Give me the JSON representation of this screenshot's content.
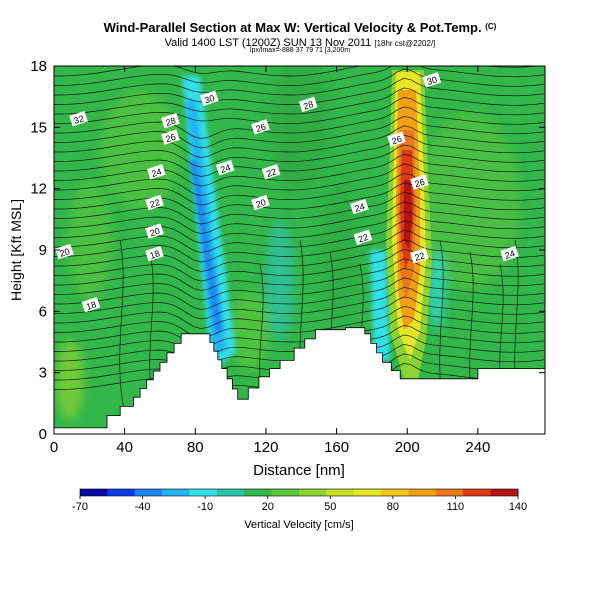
{
  "chart_data": {
    "type": "heatmap",
    "title": "Wind-Parallel Section at Max W: Vertical Velocity & Pot.Temp.",
    "title_mark": "(C)",
    "subtitle_main": "Valid 1400 LST (1200Z) SUN 13 Nov 2011",
    "subtitle_tag": "[18hr cst@2202/]",
    "info_line": "lpx/lmax=-888 37 79 71 [3,200m",
    "xlabel": "Distance [nm]",
    "ylabel": "Height [Kft MSL]",
    "xlim": [
      0,
      278
    ],
    "ylim": [
      0,
      18
    ],
    "x_ticks": [
      "0",
      "40",
      "80",
      "120",
      "160",
      "200",
      "240"
    ],
    "y_ticks": [
      "0",
      "3",
      "6",
      "9",
      "12",
      "15",
      "18"
    ],
    "colorbar": {
      "label": "Vertical Velocity [cm/s]",
      "range": [
        -70,
        140
      ],
      "tick_labels": [
        "-70",
        "-40",
        "-10",
        "20",
        "50",
        "80",
        "110",
        "140"
      ],
      "colors": [
        "#0a0aa0",
        "#0a3ce6",
        "#1e82f0",
        "#22b4f0",
        "#33e0e8",
        "#2fc2a6",
        "#33b64a",
        "#5cc83c",
        "#8cd232",
        "#c8dc28",
        "#e6e628",
        "#f2c81c",
        "#f0a014",
        "#e6781e",
        "#dc3c14",
        "#b41414"
      ]
    },
    "background_w_cm_s": 20,
    "features": [
      {
        "name": "downdraft band",
        "w_cm_s": -40,
        "x_top": 82,
        "x_bottom": 96
      },
      {
        "name": "updraft core",
        "w_cm_s": 140,
        "x": 201,
        "height_kft": 11
      }
    ],
    "terrain_heights_kft": [
      {
        "x": 0,
        "h": 0.3
      },
      {
        "x": 20,
        "h": 0.3
      },
      {
        "x": 30,
        "h": 0.9
      },
      {
        "x": 45,
        "h": 1.8
      },
      {
        "x": 60,
        "h": 3.5
      },
      {
        "x": 72,
        "h": 4.9
      },
      {
        "x": 86,
        "h": 4.9
      },
      {
        "x": 95,
        "h": 3.2
      },
      {
        "x": 104,
        "h": 1.7
      },
      {
        "x": 116,
        "h": 2.8
      },
      {
        "x": 128,
        "h": 3.6
      },
      {
        "x": 136,
        "h": 4.2
      },
      {
        "x": 148,
        "h": 5.1
      },
      {
        "x": 165,
        "h": 5.2
      },
      {
        "x": 176,
        "h": 4.9
      },
      {
        "x": 186,
        "h": 3.5
      },
      {
        "x": 196,
        "h": 2.7
      },
      {
        "x": 215,
        "h": 2.7
      },
      {
        "x": 240,
        "h": 3.2
      },
      {
        "x": 278,
        "h": 3.2
      }
    ],
    "contour_labels": [
      {
        "text": "32",
        "x": 14,
        "y": 15.4
      },
      {
        "text": "28",
        "x": 66,
        "y": 15.3
      },
      {
        "text": "26",
        "x": 66,
        "y": 14.5
      },
      {
        "text": "30",
        "x": 88,
        "y": 16.4
      },
      {
        "text": "28",
        "x": 144,
        "y": 16.1
      },
      {
        "text": "30",
        "x": 214,
        "y": 17.3
      },
      {
        "text": "26",
        "x": 117,
        "y": 15.0
      },
      {
        "text": "26",
        "x": 194,
        "y": 14.4
      },
      {
        "text": "24",
        "x": 58,
        "y": 12.8
      },
      {
        "text": "24",
        "x": 97,
        "y": 13.0
      },
      {
        "text": "22",
        "x": 123,
        "y": 12.8
      },
      {
        "text": "26",
        "x": 207,
        "y": 12.3
      },
      {
        "text": "22",
        "x": 57,
        "y": 11.3
      },
      {
        "text": "20",
        "x": 117,
        "y": 11.3
      },
      {
        "text": "24",
        "x": 173,
        "y": 11.1
      },
      {
        "text": "20",
        "x": 57,
        "y": 9.9
      },
      {
        "text": "22",
        "x": 175,
        "y": 9.6
      },
      {
        "text": "20",
        "x": 6,
        "y": 8.9
      },
      {
        "text": "18",
        "x": 57,
        "y": 8.8
      },
      {
        "text": "22",
        "x": 207,
        "y": 8.7
      },
      {
        "text": "24",
        "x": 258,
        "y": 8.8
      },
      {
        "text": "18",
        "x": 21,
        "y": 6.3
      }
    ]
  }
}
